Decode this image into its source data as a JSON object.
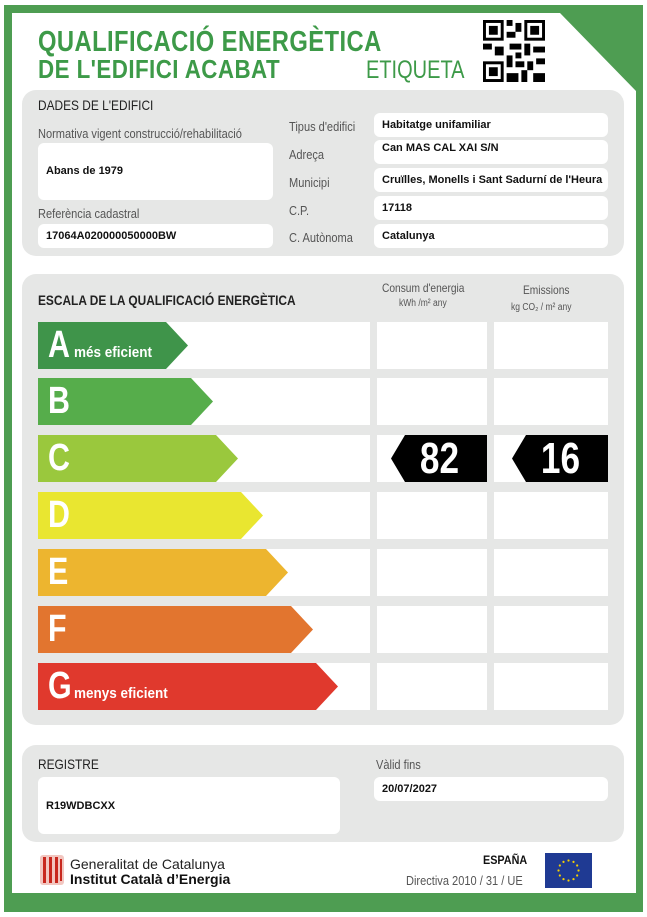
{
  "header": {
    "title_line1": "QUALIFICACIÓ ENERGÈTICA",
    "title_line2": "DE L'EDIFICI ACABAT",
    "label": "ETIQUETA",
    "qr_icon": "qr-code"
  },
  "building": {
    "section_title": "DADES DE L'EDIFICI",
    "regulation_label": "Normativa vigent construcció/rehabilitació",
    "regulation_value": "Abans de 1979",
    "cadastral_label": "Referència cadastral",
    "cadastral_value": "17064A020000050000BW",
    "fields": [
      {
        "label": "Tipus d'edifici",
        "value": "Habitatge unifamiliar"
      },
      {
        "label": "Adreça",
        "value": "Can MAS CAL XAI S/N"
      },
      {
        "label": "Municipi",
        "value": "Cruïlles, Monells i Sant Sadurní de l'Heura"
      },
      {
        "label": "C.P.",
        "value": "17118"
      },
      {
        "label": "C. Autònoma",
        "value": "Catalunya"
      }
    ]
  },
  "scale": {
    "section_title": "ESCALA DE LA QUALIFICACIÓ ENERGÈTICA",
    "col1_title": "Consum d'energia",
    "col1_unit": "kWh /m² any",
    "col2_title": "Emissions",
    "col2_unit": "kg CO₂ / m² any",
    "classes": [
      {
        "letter": "A",
        "sub": "més eficient",
        "color": "#3f944a"
      },
      {
        "letter": "B",
        "sub": "",
        "color": "#56ad4b"
      },
      {
        "letter": "C",
        "sub": "",
        "color": "#9ac83d"
      },
      {
        "letter": "D",
        "sub": "",
        "color": "#e9e630"
      },
      {
        "letter": "E",
        "sub": "",
        "color": "#edb52f"
      },
      {
        "letter": "F",
        "sub": "",
        "color": "#e2752f"
      },
      {
        "letter": "G",
        "sub": "menys eficient",
        "color": "#e0392d"
      }
    ],
    "rating_class": "C",
    "energy_value": "82",
    "emissions_value": "16"
  },
  "registry": {
    "title": "REGISTRE",
    "value": "R19WDBCXX",
    "valid_label": "Vàlid fins",
    "valid_value": "20/07/2027"
  },
  "footer": {
    "org1": "Generalitat de Catalunya",
    "org2": "Institut Català d’Energia",
    "country": "ESPAÑA",
    "directive": "Directiva 2010 / 31 / UE",
    "eu_flag_icon": "eu-flag"
  }
}
